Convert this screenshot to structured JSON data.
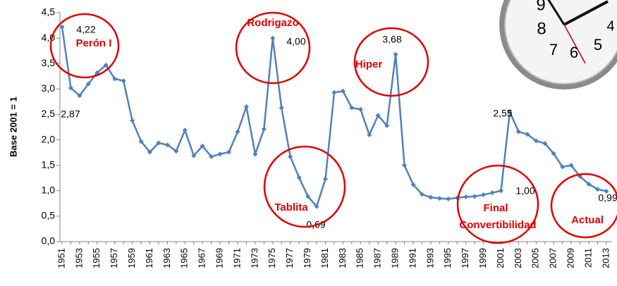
{
  "chart_data": {
    "type": "line",
    "y_label": "Base 2001 = 1",
    "categories": [
      "1951",
      null,
      "1953",
      null,
      "1955",
      null,
      "1957",
      null,
      "1959",
      null,
      "1961",
      null,
      "1963",
      null,
      "1965",
      null,
      "1967",
      null,
      "1969",
      null,
      "1971",
      null,
      "1973",
      null,
      "1975",
      null,
      "1977",
      null,
      "1979",
      null,
      "1981",
      null,
      "1983",
      null,
      "1985",
      null,
      "1987",
      null,
      "1989",
      null,
      "1991",
      null,
      "1993",
      null,
      "1995",
      null,
      "1997",
      null,
      "1999",
      null,
      "2001",
      null,
      "2003",
      null,
      "2005",
      null,
      "2007",
      null,
      "2009",
      null,
      "2011",
      null,
      "2013"
    ],
    "series": [
      {
        "name": null,
        "color": "#4f81bd",
        "values": [
          4.22,
          3.02,
          2.87,
          3.1,
          3.32,
          3.47,
          3.2,
          3.16,
          2.38,
          1.97,
          1.76,
          1.94,
          1.9,
          1.78,
          2.19,
          1.69,
          1.88,
          1.67,
          1.72,
          1.76,
          2.16,
          2.65,
          1.72,
          2.21,
          4.0,
          2.63,
          1.67,
          1.26,
          0.89,
          0.69,
          1.23,
          2.93,
          2.96,
          2.63,
          2.6,
          2.1,
          2.48,
          2.28,
          3.68,
          1.5,
          1.12,
          0.93,
          0.87,
          0.85,
          0.84,
          0.86,
          0.88,
          0.89,
          0.92,
          0.96,
          1.0,
          2.55,
          2.16,
          2.11,
          1.98,
          1.93,
          1.73,
          1.47,
          1.5,
          1.28,
          1.13,
          1.03,
          0.99
        ],
        "value_labels": [
          "4,22",
          null,
          "2,87",
          null,
          null,
          null,
          null,
          null,
          null,
          null,
          null,
          null,
          null,
          null,
          null,
          null,
          null,
          null,
          null,
          null,
          null,
          null,
          null,
          null,
          "4,00",
          null,
          null,
          null,
          null,
          "0,69",
          null,
          null,
          null,
          null,
          null,
          null,
          null,
          null,
          "3,68",
          null,
          null,
          null,
          null,
          null,
          null,
          null,
          null,
          null,
          null,
          null,
          "1,00",
          "2,55",
          null,
          null,
          null,
          null,
          null,
          null,
          null,
          null,
          null,
          null,
          "0,99"
        ]
      }
    ],
    "ylim": [
      0,
      4.5
    ],
    "yticks": [
      {
        "value": 0,
        "label": "0,0"
      },
      {
        "value": 0.5,
        "label": "0,5"
      },
      {
        "value": 1,
        "label": "1,0"
      },
      {
        "value": 1.5,
        "label": "1,5"
      },
      {
        "value": 2,
        "label": "2,0"
      },
      {
        "value": 2.5,
        "label": "2,5"
      },
      {
        "value": 3,
        "label": "3,0"
      },
      {
        "value": 3.5,
        "label": "3,5"
      },
      {
        "value": 4,
        "label": "4,0"
      },
      {
        "value": 4.5,
        "label": "4,5"
      }
    ],
    "grid": false,
    "annotations": [
      "Perón I",
      "Rodrigazo",
      "Hiper",
      "Tablita",
      "Final",
      "Convertibilidad",
      "Actual"
    ]
  },
  "clock": {
    "numerals": [
      "9",
      "8",
      "7",
      "6",
      "5",
      "4"
    ]
  }
}
